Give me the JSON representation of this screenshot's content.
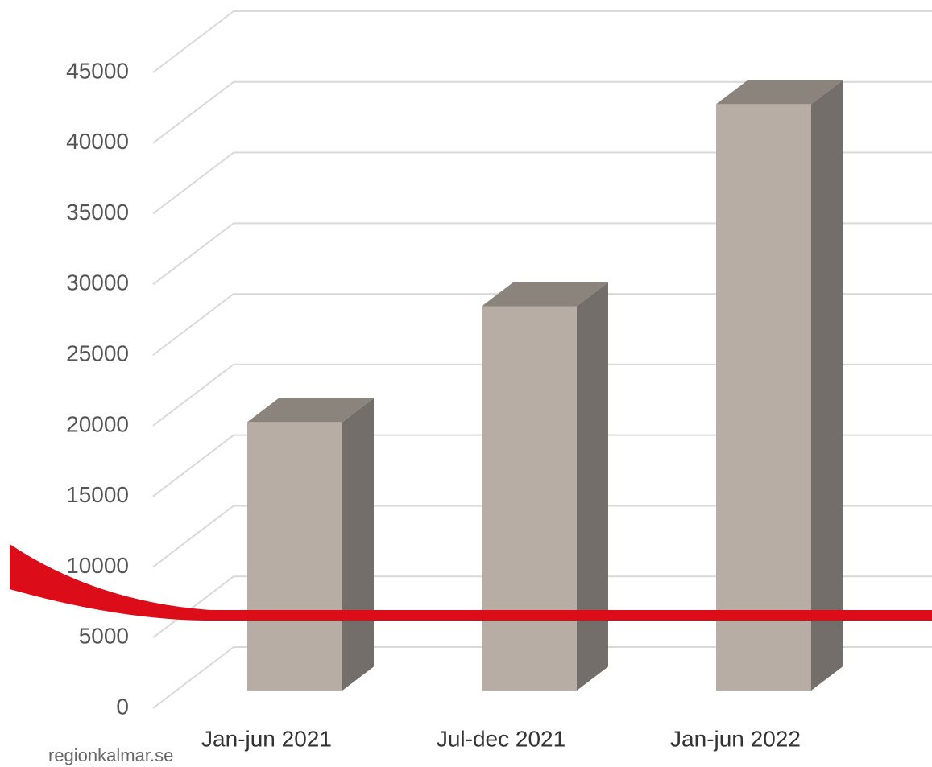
{
  "chart_data": {
    "type": "bar3d",
    "categories": [
      "Jan-jun 2021",
      "Jul-dec 2021",
      "Jan-jun 2022"
    ],
    "values": [
      19000,
      27200,
      41500
    ],
    "colors": {
      "front": "#b7ada4",
      "side": "#736e69",
      "top": "#8a847d"
    },
    "ylim": [
      0,
      45000
    ],
    "yticks": [
      0,
      5000,
      10000,
      15000,
      20000,
      25000,
      30000,
      35000,
      40000,
      45000
    ],
    "grid": true,
    "source": "regionkalmar.se"
  }
}
